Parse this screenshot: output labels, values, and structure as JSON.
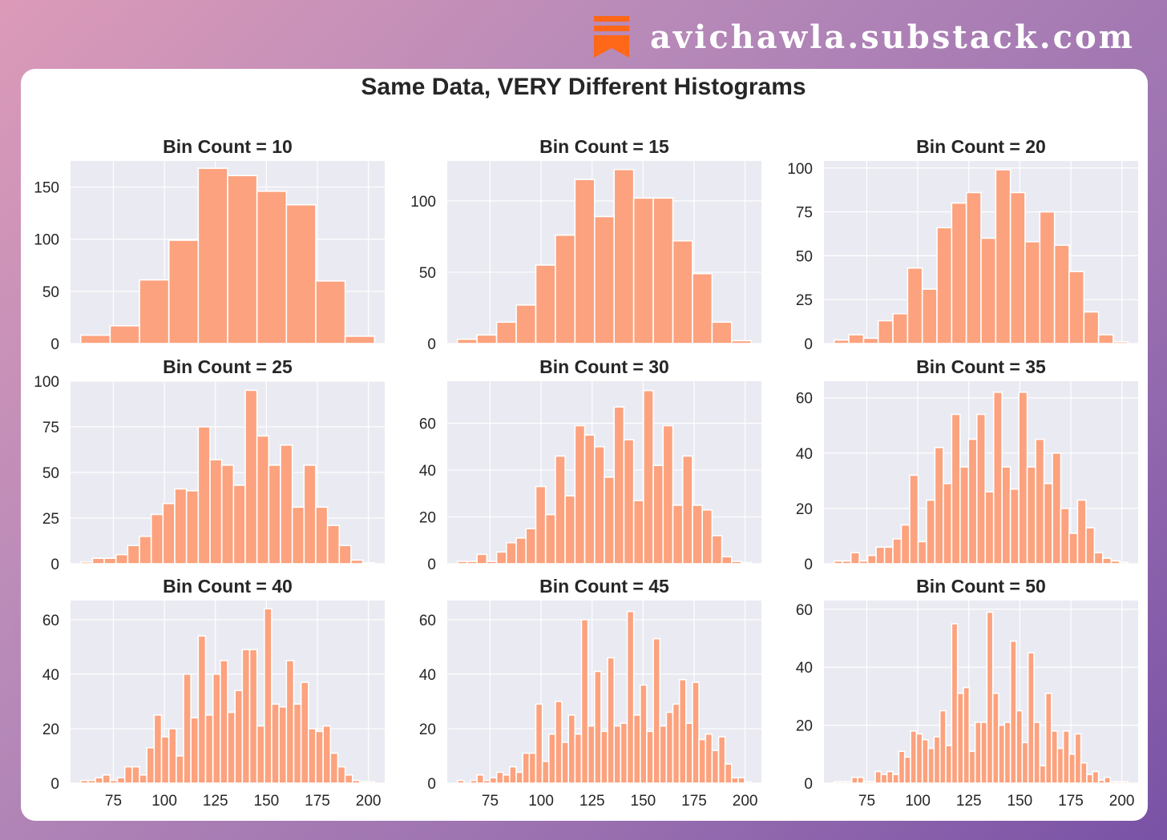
{
  "brand": {
    "text": "avichawla.substack.com",
    "logo_icon": "substack-logo-icon",
    "logo_color": "#ff6719"
  },
  "colors": {
    "bar": "#fca27e",
    "bar_edge": "#ffffff",
    "plot_bg": "#eaeaf2",
    "grid": "#ffffff",
    "text": "#262626"
  },
  "title": "Same Data, VERY Different Histograms",
  "chart_data": [
    {
      "type": "bar",
      "title": "Bin Count = 10",
      "bins": 10,
      "x_range": [
        59,
        203
      ],
      "ylim": [
        0,
        175
      ],
      "yticks": [
        0,
        50,
        100,
        150
      ],
      "xticks": [
        75,
        100,
        125,
        150,
        175,
        200
      ],
      "show_xtick_labels": false,
      "values": [
        8,
        17,
        61,
        99,
        168,
        161,
        146,
        133,
        60,
        7
      ]
    },
    {
      "type": "bar",
      "title": "Bin Count = 15",
      "bins": 15,
      "x_range": [
        59,
        203
      ],
      "ylim": [
        0,
        128
      ],
      "yticks": [
        0,
        50,
        100
      ],
      "xticks": [
        75,
        100,
        125,
        150,
        175,
        200
      ],
      "show_xtick_labels": false,
      "values": [
        3,
        6,
        15,
        27,
        55,
        76,
        115,
        89,
        122,
        102,
        102,
        72,
        49,
        15,
        2
      ]
    },
    {
      "type": "bar",
      "title": "Bin Count = 20",
      "bins": 20,
      "x_range": [
        59,
        203
      ],
      "ylim": [
        0,
        104
      ],
      "yticks": [
        0,
        25,
        50,
        75,
        100
      ],
      "xticks": [
        75,
        100,
        125,
        150,
        175,
        200
      ],
      "show_xtick_labels": false,
      "values": [
        2,
        5,
        3,
        13,
        17,
        43,
        31,
        66,
        80,
        86,
        60,
        99,
        86,
        58,
        75,
        56,
        41,
        18,
        5,
        1
      ]
    },
    {
      "type": "bar",
      "title": "Bin Count = 25",
      "bins": 25,
      "x_range": [
        59,
        203
      ],
      "ylim": [
        0,
        100
      ],
      "yticks": [
        0,
        25,
        50,
        75,
        100
      ],
      "xticks": [
        75,
        100,
        125,
        150,
        175,
        200
      ],
      "show_xtick_labels": false,
      "values": [
        1,
        3,
        3,
        5,
        10,
        15,
        27,
        33,
        41,
        40,
        75,
        57,
        54,
        43,
        95,
        70,
        54,
        65,
        31,
        54,
        31,
        21,
        10,
        2,
        0.5
      ]
    },
    {
      "type": "bar",
      "title": "Bin Count = 30",
      "bins": 30,
      "x_range": [
        59,
        203
      ],
      "ylim": [
        0,
        78
      ],
      "yticks": [
        0,
        20,
        40,
        60
      ],
      "xticks": [
        75,
        100,
        125,
        150,
        175,
        200
      ],
      "show_xtick_labels": false,
      "values": [
        1,
        1,
        4,
        1,
        5,
        9,
        11,
        15,
        33,
        21,
        46,
        29,
        59,
        55,
        50,
        37,
        67,
        53,
        27,
        74,
        42,
        59,
        25,
        46,
        25,
        23,
        12,
        3,
        1,
        0.5
      ]
    },
    {
      "type": "bar",
      "title": "Bin Count = 35",
      "bins": 35,
      "x_range": [
        59,
        203
      ],
      "ylim": [
        0,
        66
      ],
      "yticks": [
        0,
        20,
        40,
        60
      ],
      "xticks": [
        75,
        100,
        125,
        150,
        175,
        200
      ],
      "show_xtick_labels": false,
      "values": [
        1,
        1,
        4,
        1,
        3,
        6,
        6,
        9,
        14,
        32,
        8,
        23,
        42,
        29,
        54,
        35,
        45,
        54,
        26,
        62,
        35,
        27,
        62,
        35,
        45,
        29,
        40,
        20,
        11,
        23,
        13,
        4,
        2,
        1,
        0.5
      ]
    },
    {
      "type": "bar",
      "title": "Bin Count = 40",
      "bins": 40,
      "x_range": [
        59,
        203
      ],
      "ylim": [
        0,
        67
      ],
      "yticks": [
        0,
        20,
        40,
        60
      ],
      "xticks": [
        75,
        100,
        125,
        150,
        175,
        200
      ],
      "show_xtick_labels": true,
      "values": [
        1,
        1,
        2,
        3,
        1,
        2,
        6,
        6,
        3,
        13,
        25,
        17,
        20,
        10,
        40,
        24,
        54,
        25,
        40,
        45,
        26,
        34,
        49,
        49,
        21,
        64,
        29,
        28,
        45,
        29,
        37,
        20,
        19,
        21,
        11,
        6,
        3,
        1,
        0.5,
        0.5
      ]
    },
    {
      "type": "bar",
      "title": "Bin Count = 45",
      "bins": 45,
      "x_range": [
        59,
        203
      ],
      "ylim": [
        0,
        67
      ],
      "yticks": [
        0,
        20,
        40,
        60
      ],
      "xticks": [
        75,
        100,
        125,
        150,
        175,
        200
      ],
      "show_xtick_labels": true,
      "values": [
        1,
        0,
        1,
        3,
        1,
        2,
        4,
        3,
        6,
        4,
        11,
        11,
        29,
        8,
        18,
        30,
        15,
        25,
        18,
        60,
        21,
        41,
        19,
        46,
        21,
        22,
        63,
        25,
        36,
        19,
        53,
        21,
        26,
        29,
        38,
        22,
        37,
        16,
        18,
        12,
        17,
        7,
        2,
        2,
        0.5
      ]
    },
    {
      "type": "bar",
      "title": "Bin Count = 50",
      "bins": 50,
      "x_range": [
        59,
        203
      ],
      "ylim": [
        0,
        63
      ],
      "yticks": [
        0,
        20,
        40,
        60
      ],
      "xticks": [
        75,
        100,
        125,
        150,
        175,
        200
      ],
      "show_xtick_labels": true,
      "values": [
        0.5,
        0.5,
        0.5,
        2,
        2,
        0.5,
        0.5,
        4,
        3,
        4,
        3,
        11,
        9,
        18,
        17,
        15,
        12,
        16,
        25,
        13,
        55,
        31,
        33,
        11,
        21,
        21,
        59,
        31,
        20,
        21,
        49,
        25,
        14,
        45,
        21,
        6,
        31,
        18,
        12,
        18,
        10,
        17,
        7,
        3,
        4,
        1,
        2,
        0.5,
        0.5,
        0.5
      ]
    }
  ]
}
